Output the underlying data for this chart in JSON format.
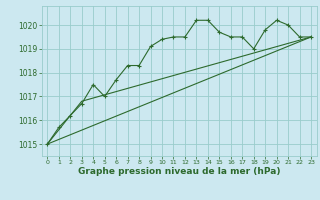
{
  "bg_color": "#cce8f0",
  "grid_color": "#99cccc",
  "line_color": "#2d6a2d",
  "marker_color": "#2d6a2d",
  "xlabel": "Graphe pression niveau de la mer (hPa)",
  "xlabel_fontsize": 6.5,
  "xlim": [
    -0.5,
    23.5
  ],
  "ylim": [
    1014.5,
    1020.8
  ],
  "yticks": [
    1015,
    1016,
    1017,
    1018,
    1019,
    1020
  ],
  "xticks": [
    0,
    1,
    2,
    3,
    4,
    5,
    6,
    7,
    8,
    9,
    10,
    11,
    12,
    13,
    14,
    15,
    16,
    17,
    18,
    19,
    20,
    21,
    22,
    23
  ],
  "series1_x": [
    0,
    1,
    2,
    3,
    4,
    5,
    6,
    7,
    8,
    9,
    10,
    11,
    12,
    13,
    14,
    15,
    16,
    17,
    18,
    19,
    20,
    21,
    22,
    23
  ],
  "series1_y": [
    1015.0,
    1015.7,
    1016.2,
    1016.7,
    1017.5,
    1017.0,
    1017.7,
    1018.3,
    1018.3,
    1019.1,
    1019.4,
    1019.5,
    1019.5,
    1020.2,
    1020.2,
    1019.7,
    1019.5,
    1019.5,
    1019.0,
    1019.8,
    1020.2,
    1020.0,
    1019.5,
    1019.5
  ],
  "series2_x": [
    0,
    3,
    23
  ],
  "series2_y": [
    1015.0,
    1016.8,
    1019.5
  ],
  "series3_x": [
    0,
    23
  ],
  "series3_y": [
    1015.0,
    1019.5
  ]
}
